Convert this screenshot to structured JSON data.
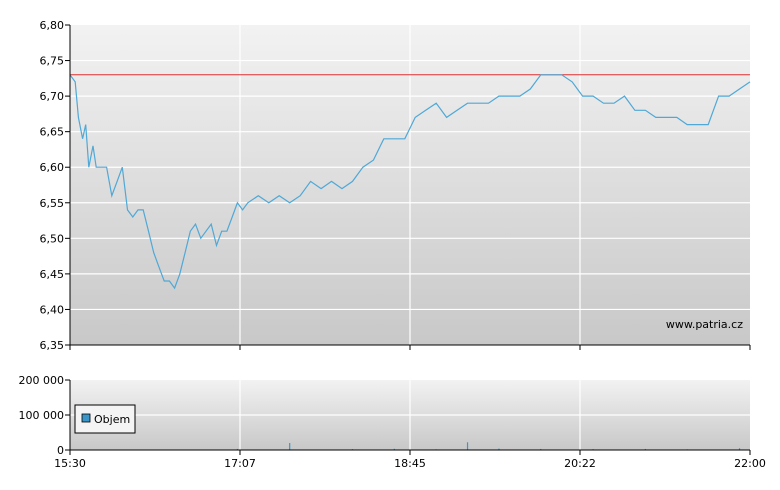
{
  "watermark": "www.patria.cz",
  "colors": {
    "price_line": "#4fa8d6",
    "reference_line": "#e03030",
    "volume_bar": "#3a96c8",
    "legend_swatch": "#3a96c8",
    "plot_bg_top": "#f2f2f2",
    "plot_bg_bottom": "#c8c8c8"
  },
  "chart_data": [
    {
      "type": "line",
      "name": "price",
      "x_ticks": [
        "15:30",
        "17:07",
        "18:45",
        "20:22",
        "22:00"
      ],
      "x_range_hours": [
        15.5,
        22.0
      ],
      "y_ticks": [
        "6,80",
        "6,75",
        "6,70",
        "6,65",
        "6,60",
        "6,55",
        "6,50",
        "6,45",
        "6,40",
        "6,35"
      ],
      "ylim": [
        6.35,
        6.8
      ],
      "grid": true,
      "reference_line": 6.73,
      "series": [
        {
          "x_hours": [
            15.5,
            15.55,
            15.58,
            15.62,
            15.65,
            15.68,
            15.72,
            15.75,
            15.78,
            15.82,
            15.85,
            15.9,
            15.95,
            16.0,
            16.05,
            16.1,
            16.15,
            16.2,
            16.25,
            16.3,
            16.35,
            16.4,
            16.45,
            16.5,
            16.55,
            16.6,
            16.65,
            16.7,
            16.75,
            16.8,
            16.85,
            16.9,
            16.95,
            17.0,
            17.05,
            17.1,
            17.15,
            17.2,
            17.3,
            17.4,
            17.5,
            17.6,
            17.7,
            17.8,
            17.9,
            18.0,
            18.1,
            18.2,
            18.3,
            18.4,
            18.5,
            18.6,
            18.7,
            18.8,
            18.9,
            19.0,
            19.1,
            19.2,
            19.3,
            19.4,
            19.5,
            19.6,
            19.7,
            19.8,
            19.9,
            20.0,
            20.1,
            20.2,
            20.3,
            20.4,
            20.5,
            20.6,
            20.7,
            20.8,
            20.9,
            21.0,
            21.1,
            21.2,
            21.3,
            21.4,
            21.5,
            21.6,
            21.7,
            21.8,
            21.9,
            22.0
          ],
          "values": [
            6.73,
            6.72,
            6.67,
            6.64,
            6.66,
            6.6,
            6.63,
            6.6,
            6.6,
            6.6,
            6.6,
            6.56,
            6.58,
            6.6,
            6.54,
            6.53,
            6.54,
            6.54,
            6.51,
            6.48,
            6.46,
            6.44,
            6.44,
            6.43,
            6.45,
            6.48,
            6.51,
            6.52,
            6.5,
            6.51,
            6.52,
            6.49,
            6.51,
            6.51,
            6.53,
            6.55,
            6.54,
            6.55,
            6.56,
            6.55,
            6.56,
            6.55,
            6.56,
            6.58,
            6.57,
            6.58,
            6.57,
            6.58,
            6.6,
            6.61,
            6.64,
            6.64,
            6.64,
            6.67,
            6.68,
            6.69,
            6.67,
            6.68,
            6.69,
            6.69,
            6.69,
            6.7,
            6.7,
            6.7,
            6.71,
            6.73,
            6.73,
            6.73,
            6.72,
            6.7,
            6.7,
            6.69,
            6.69,
            6.7,
            6.68,
            6.68,
            6.67,
            6.67,
            6.67,
            6.66,
            6.66,
            6.66,
            6.7,
            6.7,
            6.71,
            6.72
          ]
        }
      ]
    },
    {
      "type": "bar",
      "name": "volume",
      "y_ticks": [
        "200 000",
        "100 000",
        "0"
      ],
      "ylim": [
        0,
        200000
      ],
      "x_ticks": [
        "15:30",
        "17:07",
        "18:45",
        "20:22",
        "22:00"
      ],
      "legend": "Objem",
      "legend_position": "left-middle",
      "series": [
        {
          "name": "Objem",
          "x_hours": [
            17.1,
            17.6,
            18.2,
            18.6,
            19.0,
            19.3,
            19.6,
            20.0,
            20.5,
            21.0,
            21.4,
            21.9
          ],
          "values": [
            3000,
            20000,
            2500,
            3500,
            2000,
            22000,
            4000,
            3000,
            2500,
            3000,
            2000,
            5000
          ]
        }
      ]
    }
  ]
}
